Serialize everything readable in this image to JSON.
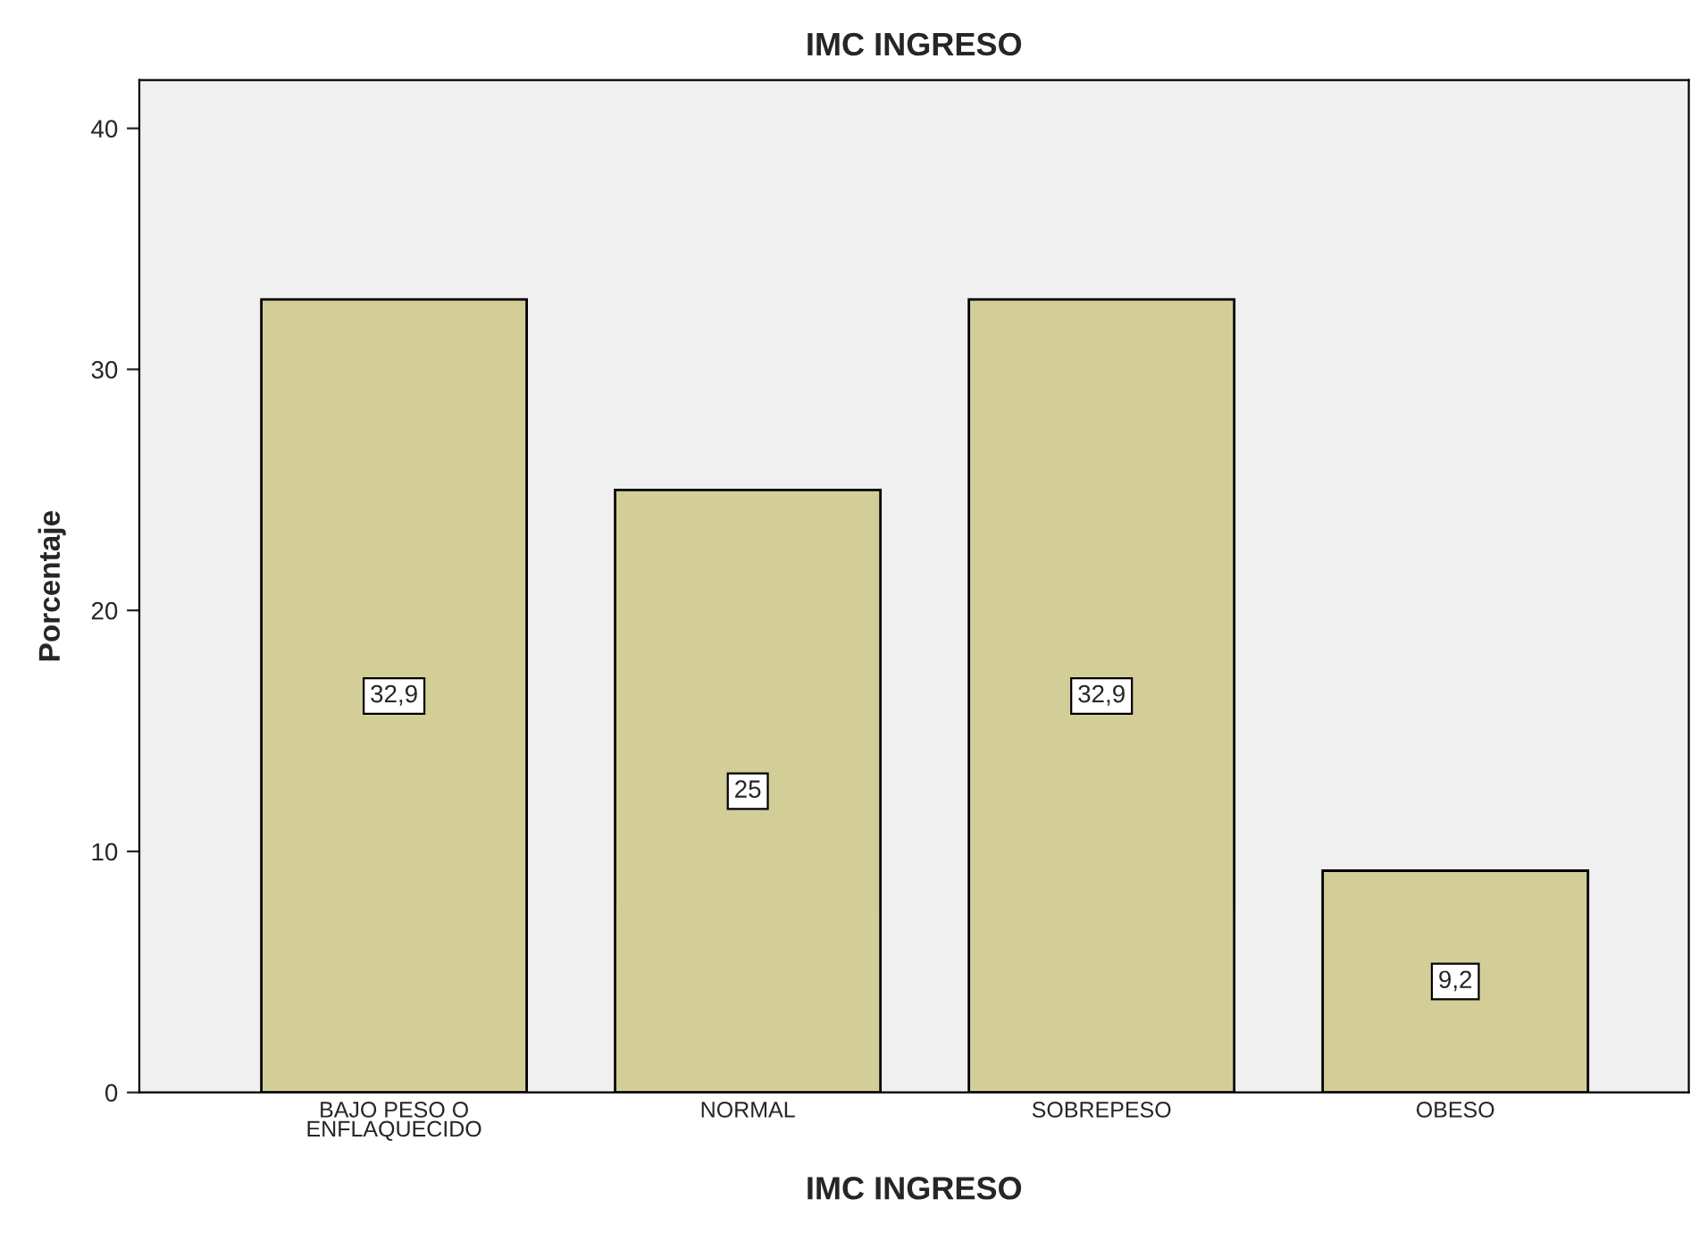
{
  "chart_data": {
    "type": "bar",
    "title": "IMC INGRESO",
    "xlabel": "IMC INGRESO",
    "ylabel": "Porcentaje",
    "categories": [
      "BAJO PESO O\nENFLAQUECIDO",
      "NORMAL",
      "SOBREPESO",
      "OBESO"
    ],
    "values": [
      32.9,
      25,
      32.9,
      9.2
    ],
    "value_labels": [
      "32,9",
      "25",
      "32,9",
      "9,2"
    ],
    "color": "#d3ce97",
    "ylim": [
      0,
      42
    ],
    "yticks": [
      0,
      10,
      20,
      30,
      40
    ],
    "grid": false,
    "legend": false
  }
}
